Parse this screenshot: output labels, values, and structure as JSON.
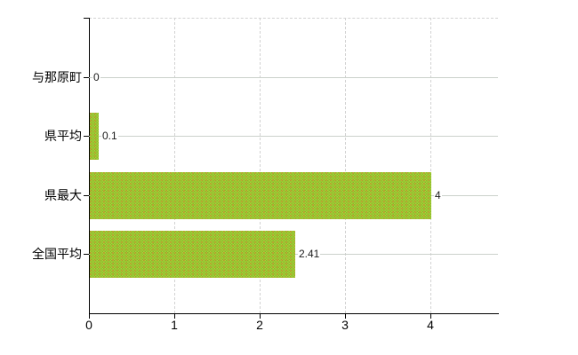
{
  "colors": {
    "bar": "#9ec931",
    "bar_light": "#abd038",
    "bar_dark": "#88ba2b",
    "bar_speck": "#cf8a2f",
    "grid_dashed": "#d2d2d2",
    "grid_solid": "#cbd1cb",
    "axis": "#000000",
    "text": "#1a1a1a"
  },
  "chart_data": {
    "type": "bar",
    "orientation": "horizontal",
    "title": "",
    "categories": [
      "与那原町",
      "県平均",
      "県最大",
      "全国平均"
    ],
    "values": [
      0,
      0.1,
      4,
      2.41
    ],
    "value_labels": [
      "0",
      "0.1",
      "4",
      "2.41"
    ],
    "x_ticks": [
      0,
      1,
      2,
      3,
      4
    ],
    "x_tick_labels": [
      "0",
      "1",
      "2",
      "3",
      "4"
    ],
    "xlim": [
      0,
      4.79
    ],
    "grid": true,
    "legend": false,
    "bar_color": "#9ec931"
  }
}
